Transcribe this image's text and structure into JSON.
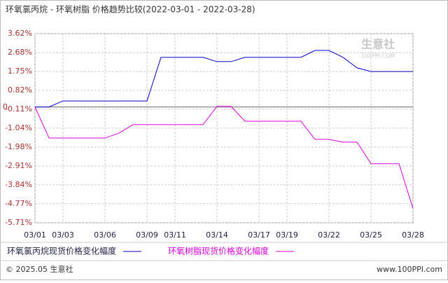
{
  "chart_data": {
    "type": "line",
    "title": "环氧氯丙烷 - 环氧树脂 价格趋势比较(2022-03-01 - 2022-03-28)",
    "categories": [
      "03/01",
      null,
      "03/03",
      null,
      null,
      "03/06",
      null,
      null,
      "03/09",
      null,
      "03/11",
      null,
      null,
      "03/14",
      null,
      null,
      "03/17",
      null,
      "03/19",
      null,
      null,
      "03/22",
      null,
      null,
      "03/25",
      null,
      null,
      "03/28"
    ],
    "series": [
      {
        "name": "环氧氯丙烷现货价格变化幅度",
        "color": "#0000cc",
        "values": [
          0,
          0,
          0.3,
          0.3,
          0.3,
          0.3,
          0.3,
          0.3,
          0.3,
          2.45,
          2.45,
          2.45,
          2.45,
          2.24,
          2.24,
          2.45,
          2.45,
          2.45,
          2.45,
          2.45,
          2.79,
          2.79,
          2.45,
          1.93,
          1.75,
          1.75,
          1.75,
          1.75
        ]
      },
      {
        "name": "环氧树脂现货价格变化幅度",
        "color": "#dd00dd",
        "values": [
          0,
          -1.53,
          -1.53,
          -1.53,
          -1.53,
          -1.53,
          -1.29,
          -0.87,
          -0.87,
          -0.87,
          -0.87,
          -0.87,
          -0.87,
          0.03,
          0.03,
          -0.7,
          -0.7,
          -0.7,
          -0.7,
          -0.7,
          -1.6,
          -1.6,
          -1.73,
          -1.73,
          -2.8,
          -2.8,
          -2.8,
          -5.0
        ]
      }
    ],
    "ylim": [
      -5.71,
      3.62
    ],
    "yticks": [
      {
        "value": 3.62,
        "label": "3.62%"
      },
      {
        "value": 2.68,
        "label": "2.68%"
      },
      {
        "value": 1.75,
        "label": "1.75%"
      },
      {
        "value": 0.82,
        "label": "0.82%"
      },
      {
        "value": -0.11,
        "label": "-0.11%"
      },
      {
        "value": -1.04,
        "label": "-1.04%"
      },
      {
        "value": -1.98,
        "label": "-1.98%"
      },
      {
        "value": -2.91,
        "label": "-2.91%"
      },
      {
        "value": -3.84,
        "label": "-3.84%"
      },
      {
        "value": -4.77,
        "label": "-4.77%"
      },
      {
        "value": -5.71,
        "label": "-5.71%"
      }
    ],
    "zero_label": {
      "value": 0,
      "label": "0"
    },
    "grid": true,
    "watermark": [
      "生意社",
      "100PPI.COM"
    ],
    "footer": {
      "left": "© 2025.05 生意社",
      "right": "www.100PPI.com"
    }
  }
}
